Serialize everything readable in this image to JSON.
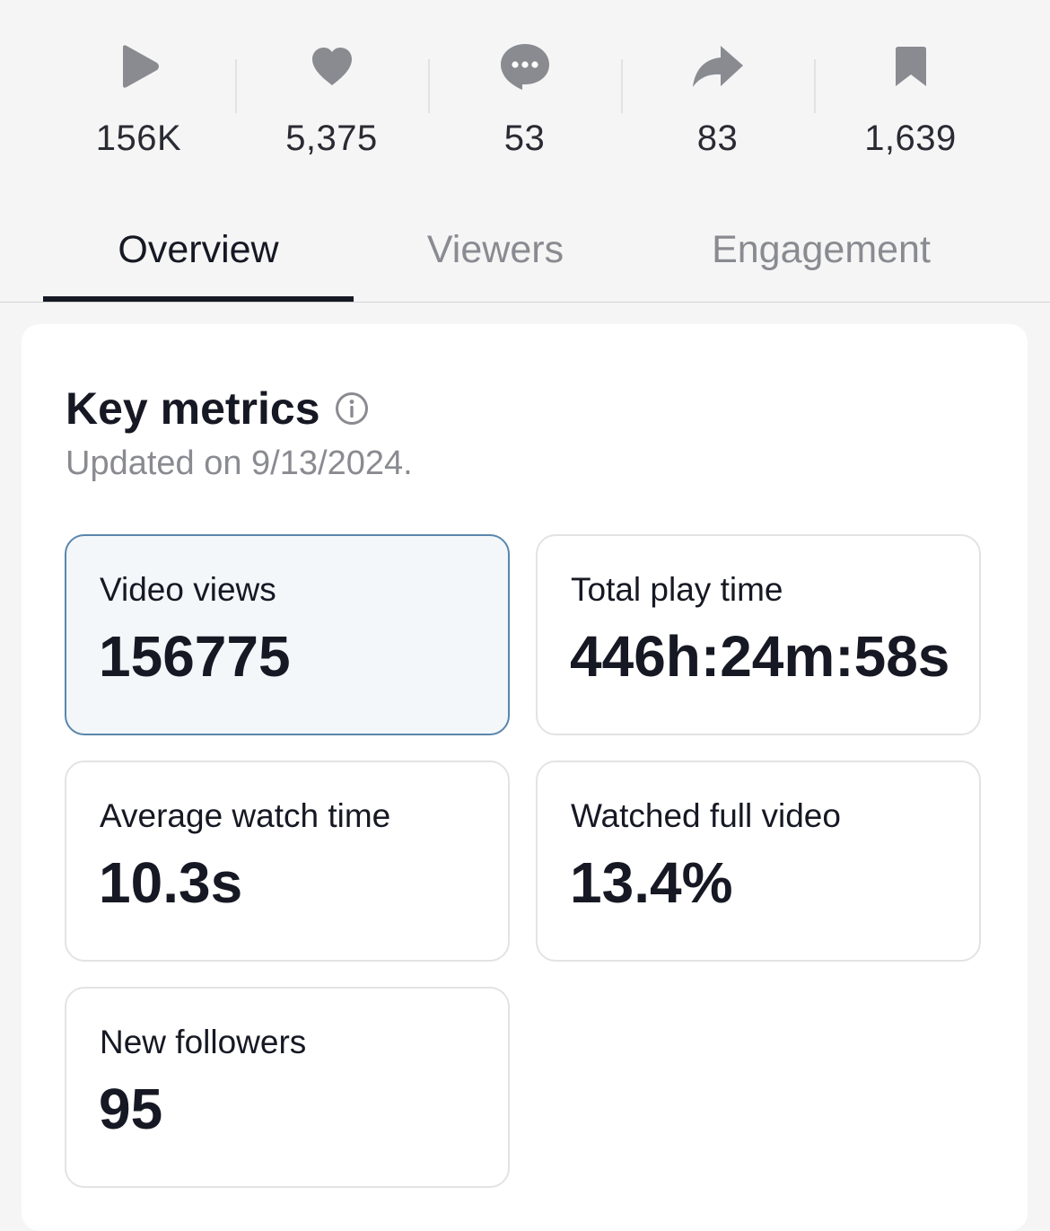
{
  "stats": [
    {
      "icon": "play-icon",
      "value": "156K"
    },
    {
      "icon": "heart-icon",
      "value": "5,375"
    },
    {
      "icon": "comment-icon",
      "value": "53"
    },
    {
      "icon": "share-icon",
      "value": "83"
    },
    {
      "icon": "bookmark-icon",
      "value": "1,639"
    }
  ],
  "tabs": [
    {
      "label": "Overview",
      "active": true
    },
    {
      "label": "Viewers",
      "active": false
    },
    {
      "label": "Engagement",
      "active": false
    }
  ],
  "key_metrics": {
    "title": "Key metrics",
    "info_icon": "info-icon",
    "updated": "Updated on 9/13/2024.",
    "metrics": [
      {
        "label": "Video views",
        "value": "156775",
        "selected": true
      },
      {
        "label": "Total play time",
        "value": "446h:24m:58s",
        "selected": false
      },
      {
        "label": "Average watch time",
        "value": "10.3s",
        "selected": false
      },
      {
        "label": "Watched full video",
        "value": "13.4%",
        "selected": false
      },
      {
        "label": "New followers",
        "value": "95",
        "selected": false
      }
    ]
  },
  "colors": {
    "background": "#f5f5f5",
    "icon_gray": "#8a8b91",
    "text_primary": "#161823",
    "text_secondary": "#8a8b91",
    "selected_card_bg": "#f3f7fa",
    "selected_card_border": "#5a86ac"
  }
}
